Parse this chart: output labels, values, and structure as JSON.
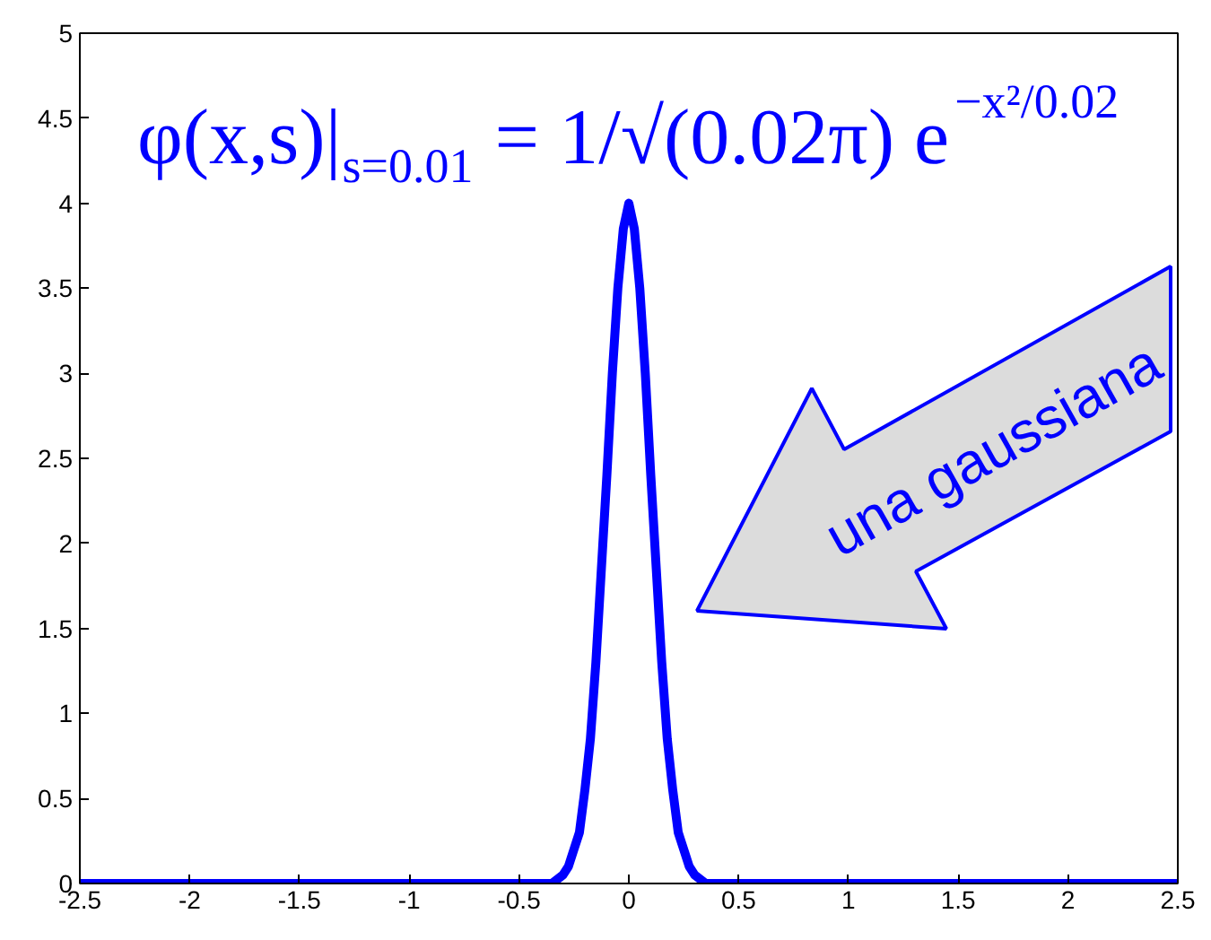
{
  "chart_data": {
    "type": "line",
    "x": [
      -2.5,
      -0.35,
      -0.3,
      -0.275,
      -0.25,
      -0.225,
      -0.2,
      -0.175,
      -0.15,
      -0.125,
      -0.1,
      -0.075,
      -0.05,
      -0.025,
      0,
      0.025,
      0.05,
      0.075,
      0.1,
      0.125,
      0.15,
      0.175,
      0.2,
      0.225,
      0.25,
      0.275,
      0.3,
      0.35,
      2.5
    ],
    "series": [
      {
        "color": "#0000ff",
        "values": [
          0,
          0,
          0.05,
          0.1,
          0.2,
          0.3,
          0.55,
          0.85,
          1.3,
          1.85,
          2.4,
          3,
          3.5,
          3.85,
          4,
          3.85,
          3.5,
          3,
          2.4,
          1.85,
          1.3,
          0.85,
          0.55,
          0.3,
          0.2,
          0.1,
          0.05,
          0,
          0
        ]
      }
    ],
    "xlim": [
      -2.5,
      2.5
    ],
    "ylim": [
      0,
      5
    ],
    "xticks": [
      -2.5,
      -2,
      -1.5,
      -1,
      -0.5,
      0,
      0.5,
      1,
      1.5,
      2,
      2.5
    ],
    "yticks": [
      0,
      0.5,
      1,
      1.5,
      2,
      2.5,
      3,
      3.5,
      4,
      4.5,
      5
    ],
    "annotations": [
      "φ(x,s)|$_{s=0.01}$ = 1/√(0.02π) e$^{−x²/0.02}$",
      "una gaussiana"
    ]
  }
}
